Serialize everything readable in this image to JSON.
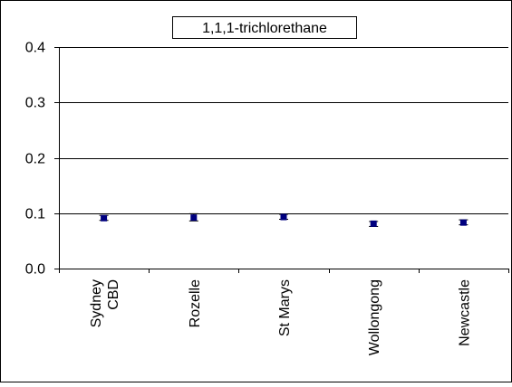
{
  "chart_data": {
    "type": "scatter",
    "title": "1,1,1-trichlorethane",
    "xlabel": "",
    "ylabel": "",
    "categories": [
      "Sydney CBD",
      "Rozelle",
      "St Marys",
      "Wollongong",
      "Newcastle"
    ],
    "category_lines": [
      [
        "Sydney",
        "CBD"
      ],
      [
        "Rozelle"
      ],
      [
        "St Marys"
      ],
      [
        "Wollongong"
      ],
      [
        "Newcastle"
      ]
    ],
    "series": [
      {
        "values": [
          0.091,
          0.092,
          0.093,
          0.081,
          0.083
        ],
        "err_low": [
          0.087,
          0.086,
          0.089,
          0.076,
          0.079
        ],
        "err_high": [
          0.096,
          0.099,
          0.098,
          0.085,
          0.088
        ]
      }
    ],
    "ylim": [
      0,
      0.4
    ],
    "yticks": [
      0.0,
      0.1,
      0.2,
      0.3,
      0.4
    ],
    "ytick_labels": [
      "0.0",
      "0.1",
      "0.2",
      "0.3",
      "0.4"
    ],
    "grid": true,
    "legend": "none",
    "colors": {
      "marker": "#00007f",
      "errorbar": "#000000",
      "gridline": "#000000"
    }
  }
}
